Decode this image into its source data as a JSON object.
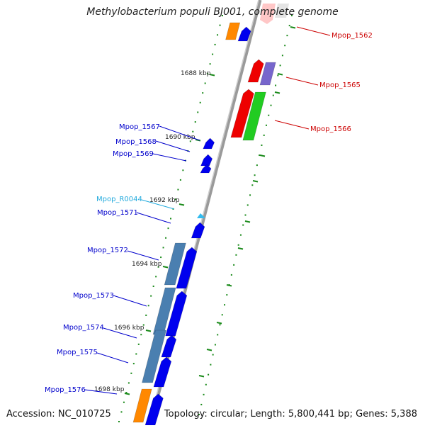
{
  "title": "Methylobacterium populi BJ001, complete genome",
  "accession_label": "Accession: NC_010725",
  "summary_label": "Topology: circular; Length: 5,800,441 bp; Genes: 5,388",
  "colors": {
    "backbone": "#8a8a8a",
    "tick": "#1a8a1a",
    "gene_forward": "#0000ee",
    "gene_forward_label": "#0000cc",
    "gene_red": "#ee0000",
    "gene_red_label": "#cc0000",
    "gene_green": "#22cc22",
    "gene_purple": "#7766cc",
    "gene_orange": "#ff8800",
    "gene_steel": "#4a7fb0",
    "rna": "#33bbee",
    "rna_label": "#22aadd"
  },
  "kbp_ticks": [
    {
      "label": "1688 kbp"
    },
    {
      "label": "1690 kbp"
    },
    {
      "label": "1692 kbp"
    },
    {
      "label": "1694 kbp"
    },
    {
      "label": "1696 kbp"
    },
    {
      "label": "1698 kbp"
    }
  ],
  "genes_left": [
    {
      "label": "Mpop_1567",
      "kind": "forward"
    },
    {
      "label": "Mpop_1568",
      "kind": "forward"
    },
    {
      "label": "Mpop_1569",
      "kind": "forward"
    },
    {
      "label": "Mpop_R0044",
      "kind": "rna"
    },
    {
      "label": "Mpop_1571",
      "kind": "forward"
    },
    {
      "label": "Mpop_1572",
      "kind": "forward"
    },
    {
      "label": "Mpop_1573",
      "kind": "forward"
    },
    {
      "label": "Mpop_1574",
      "kind": "forward"
    },
    {
      "label": "Mpop_1575",
      "kind": "forward"
    },
    {
      "label": "Mpop_1576",
      "kind": "forward"
    }
  ],
  "genes_right": [
    {
      "label": "Mpop_1562",
      "kind": "red"
    },
    {
      "label": "Mpop_1565",
      "kind": "red"
    },
    {
      "label": "Mpop_1566",
      "kind": "red"
    }
  ]
}
